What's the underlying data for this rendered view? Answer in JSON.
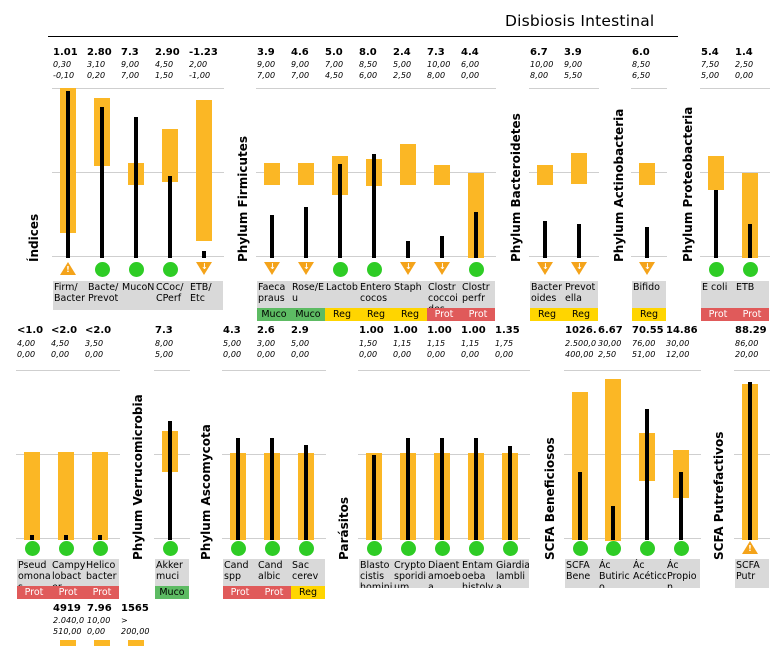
{
  "title": "Disbiosis Intestinal",
  "colors": {
    "range": "#fbb725",
    "ok": "#2ecc25",
    "warn": "#f4a31a",
    "muco": "#5dbb63",
    "reg": "#ffd500",
    "prot": "#e05a5a",
    "label_bg": "#d9d9d9"
  },
  "sections": [
    "Índices",
    "Phylum Firmicutes",
    "Phylum Bacteroidetes",
    "Phylum Actinobacteria",
    "Phylum Proteobacteria",
    "Phylum Verrucomicrobia",
    "Phylum Ascomycota",
    "Parásitos",
    "SCFA Beneficiosos",
    "SCFA Putrefactivos"
  ],
  "indicators": [
    {
      "label": "Firm/ Bacter",
      "value": "1.01",
      "max": "0,30",
      "min": "-0,10",
      "status": "warn-up",
      "badge": "",
      "rank": 0.98
    },
    {
      "label": "Bacte/ Prevot",
      "value": "2.80",
      "max": "3,10",
      "min": "0,20",
      "status": "ok",
      "badge": "",
      "rank": 0.89
    },
    {
      "label": "MucoN",
      "value": "7.3",
      "max": "9,00",
      "min": "7,00",
      "status": "ok",
      "badge": "",
      "rank": 0.83
    },
    {
      "label": "CCoc/ CPerf",
      "value": "2.90",
      "max": "4,50",
      "min": "1,50",
      "status": "ok",
      "badge": "",
      "rank": 0.48
    },
    {
      "label": "ETB/ Etc",
      "value": "-1.23",
      "max": "2,00",
      "min": "-1,00",
      "status": "warn-down",
      "badge": "",
      "rank": 0.04
    },
    {
      "label": "Faeca praus",
      "value": "3.9",
      "max": "9,00",
      "min": "7,00",
      "status": "warn-down",
      "badge": "Muco",
      "rank": 0.25
    },
    {
      "label": "Rose/E u",
      "value": "4.6",
      "max": "9,00",
      "min": "7,00",
      "status": "warn-down",
      "badge": "Muco",
      "rank": 0.3
    },
    {
      "label": "Lactob",
      "value": "5.0",
      "max": "7,00",
      "min": "4,50",
      "status": "ok",
      "badge": "Reg",
      "rank": 0.55
    },
    {
      "label": "Entero cocos",
      "value": "8.0",
      "max": "8,50",
      "min": "6,00",
      "status": "ok",
      "badge": "Reg",
      "rank": 0.61
    },
    {
      "label": "Staph",
      "value": "2.4",
      "max": "5,00",
      "min": "2,50",
      "status": "warn-down",
      "badge": "Reg",
      "rank": 0.1
    },
    {
      "label": "Clostr coccoi des",
      "value": "7.3",
      "max": "10,00",
      "min": "8,00",
      "status": "warn-down",
      "badge": "Prot",
      "rank": 0.13
    },
    {
      "label": "Clostr perfr",
      "value": "4.4",
      "max": "6,00",
      "min": "0,00",
      "status": "ok",
      "badge": "Prot",
      "rank": 0.27
    },
    {
      "label": "Bacter oides",
      "value": "6.7",
      "max": "10,00",
      "min": "8,00",
      "status": "warn-down",
      "badge": "Reg",
      "rank": 0.22
    },
    {
      "label": "Prevot ella",
      "value": "3.9",
      "max": "9,00",
      "min": "5,50",
      "status": "warn-down",
      "badge": "Reg",
      "rank": 0.2
    },
    {
      "label": "Bifido",
      "value": "6.0",
      "max": "8,50",
      "min": "6,50",
      "status": "warn-down",
      "badge": "Reg",
      "rank": 0.18
    },
    {
      "label": "E coli",
      "value": "5.4",
      "max": "7,50",
      "min": "5,00",
      "status": "ok",
      "badge": "Prot",
      "rank": 0.4
    },
    {
      "label": "ETB",
      "value": "1.4",
      "max": "2,50",
      "min": "0,00",
      "status": "ok",
      "badge": "Prot",
      "rank": 0.2
    },
    {
      "label": "Pseud omona s",
      "value": "<1.0",
      "max": "4,00",
      "min": "0,00",
      "status": "ok",
      "badge": "Prot",
      "rank": 0.03
    },
    {
      "label": "Campy lobact er",
      "value": "<2.0",
      "max": "4,50",
      "min": "0,00",
      "status": "ok",
      "badge": "Prot",
      "rank": 0.03
    },
    {
      "label": "Helico bacter",
      "value": "<2.0",
      "max": "3,50",
      "min": "0,00",
      "status": "ok",
      "badge": "Prot",
      "rank": 0.03
    },
    {
      "label": "Akker muci",
      "value": "7.3",
      "max": "8,00",
      "min": "5,00",
      "status": "ok",
      "badge": "Muco",
      "rank": 0.7
    },
    {
      "label": "Cand spp",
      "value": "4.3",
      "max": "5,00",
      "min": "0,00",
      "status": "ok",
      "badge": "Prot",
      "rank": 0.6
    },
    {
      "label": "Cand albic",
      "value": "2.6",
      "max": "3,00",
      "min": "0,00",
      "status": "ok",
      "badge": "Prot",
      "rank": 0.6
    },
    {
      "label": "Sac cerev",
      "value": "2.9",
      "max": "5,00",
      "min": "0,00",
      "status": "ok",
      "badge": "Reg",
      "rank": 0.56
    },
    {
      "label": "Blasto cistis hominis",
      "value": "1.00",
      "max": "1,50",
      "min": "0,00",
      "status": "ok",
      "badge": "",
      "rank": 0.5
    },
    {
      "label": "Crypto sporidi um",
      "value": "1.00",
      "max": "1,15",
      "min": "0,00",
      "status": "ok",
      "badge": "",
      "rank": 0.6
    },
    {
      "label": "Diaent amoeb a",
      "value": "1.00",
      "max": "1,15",
      "min": "0,00",
      "status": "ok",
      "badge": "",
      "rank": 0.6
    },
    {
      "label": "Entam oeba histoly",
      "value": "1.00",
      "max": "1,15",
      "min": "0,00",
      "status": "ok",
      "badge": "",
      "rank": 0.6
    },
    {
      "label": "Giardia lambli a",
      "value": "1.35",
      "max": "1,75",
      "min": "0,00",
      "status": "ok",
      "badge": "",
      "rank": 0.55
    },
    {
      "label": "SCFA Bene",
      "value": "1026.",
      "max": "2.500,0",
      "min": "400,00",
      "status": "ok",
      "badge": "",
      "rank": 0.4
    },
    {
      "label": "Ác Butiric o",
      "value": "6.67",
      "max": "30,00",
      "min": "2,50",
      "status": "ok",
      "badge": "",
      "rank": 0.2
    },
    {
      "label": "Ác Acético",
      "value": "70.55",
      "max": "76,00",
      "min": "51,00",
      "status": "ok",
      "badge": "",
      "rank": 0.77
    },
    {
      "label": "Ác Propio n",
      "value": "14.86",
      "max": "30,00",
      "min": "12,00",
      "status": "ok",
      "badge": "",
      "rank": 0.4
    },
    {
      "label": "SCFA Putr",
      "value": "88.29",
      "max": "86,00",
      "min": "20,00",
      "status": "warn-up",
      "badge": "",
      "rank": 0.93
    },
    {
      "label": "",
      "value": "4919",
      "max": "2.040,0",
      "min": "510,00",
      "status": "",
      "badge": "",
      "rank": 0
    },
    {
      "label": "",
      "value": "7.96",
      "max": "10,00",
      "min": "0,00",
      "status": "",
      "badge": "",
      "rank": 0
    },
    {
      "label": "",
      "value": "1565",
      "max": ">",
      "min": "200,00",
      "status": "",
      "badge": "",
      "rank": 0
    }
  ]
}
